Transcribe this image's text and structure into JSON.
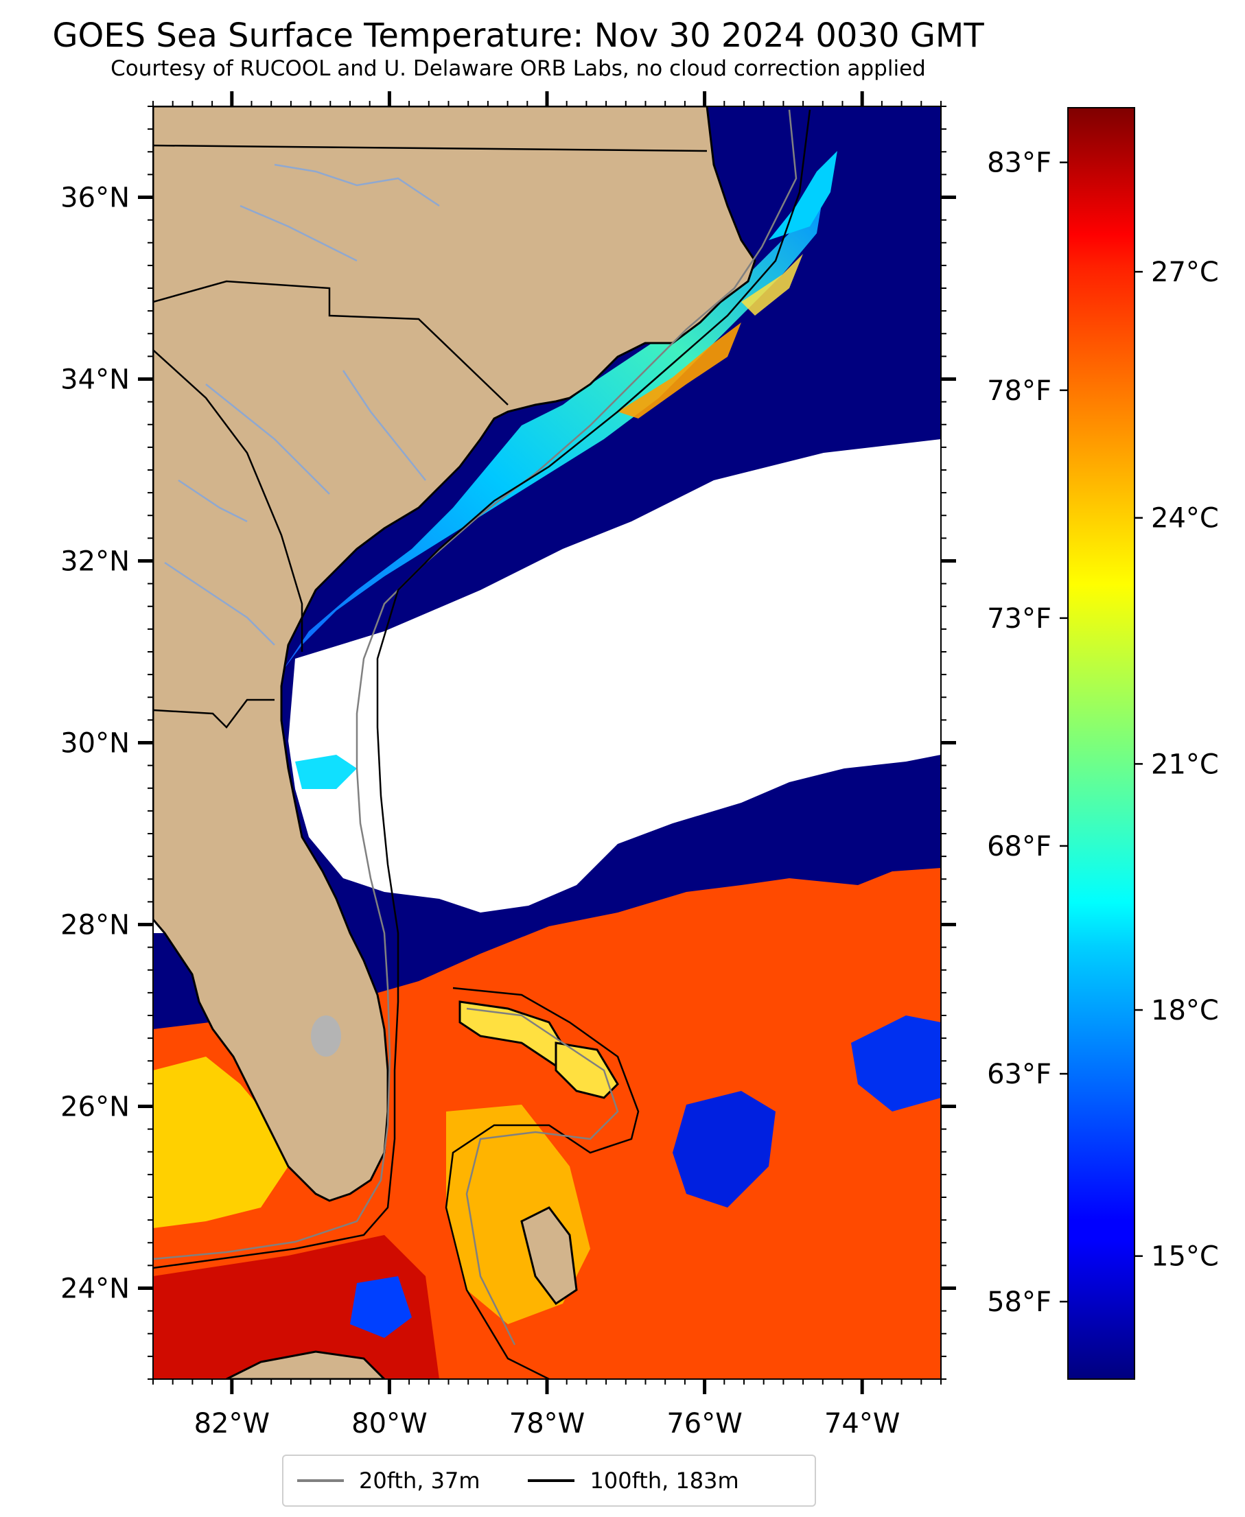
{
  "title": "GOES Sea Surface Temperature: Nov 30 2024 0030 GMT",
  "subtitle": "Courtesy of RUCOOL and U. Delaware ORB Labs, no cloud correction applied",
  "map": {
    "lon_range": [
      -83,
      -73
    ],
    "lat_range": [
      23,
      37
    ],
    "lat_ticks": [
      "36°N",
      "34°N",
      "32°N",
      "30°N",
      "28°N",
      "26°N",
      "24°N"
    ],
    "lat_values": [
      36,
      34,
      32,
      30,
      28,
      26,
      24
    ],
    "lon_ticks": [
      "82°W",
      "80°W",
      "78°W",
      "76°W",
      "74°W"
    ],
    "lon_values": [
      -82,
      -80,
      -78,
      -76,
      -74
    ],
    "colors": {
      "land": "#d2b48c",
      "cloud": "#ffffff",
      "cold": "#00007f",
      "lake": "#b4b4b4"
    }
  },
  "colorbar": {
    "colormap": "jet",
    "range_c": [
      13.5,
      29
    ],
    "celsius_labels": [
      "27°C",
      "24°C",
      "21°C",
      "18°C",
      "15°C"
    ],
    "celsius_values": [
      27,
      24,
      21,
      18,
      15
    ],
    "fahrenheit_labels": [
      "83°F",
      "78°F",
      "73°F",
      "68°F",
      "63°F",
      "58°F"
    ],
    "fahrenheit_values": [
      83,
      78,
      73,
      68,
      63,
      58
    ]
  },
  "legend": {
    "items": [
      {
        "label": "20fth, 37m",
        "color": "#808080"
      },
      {
        "label": "100fth, 183m",
        "color": "#000000"
      }
    ]
  }
}
